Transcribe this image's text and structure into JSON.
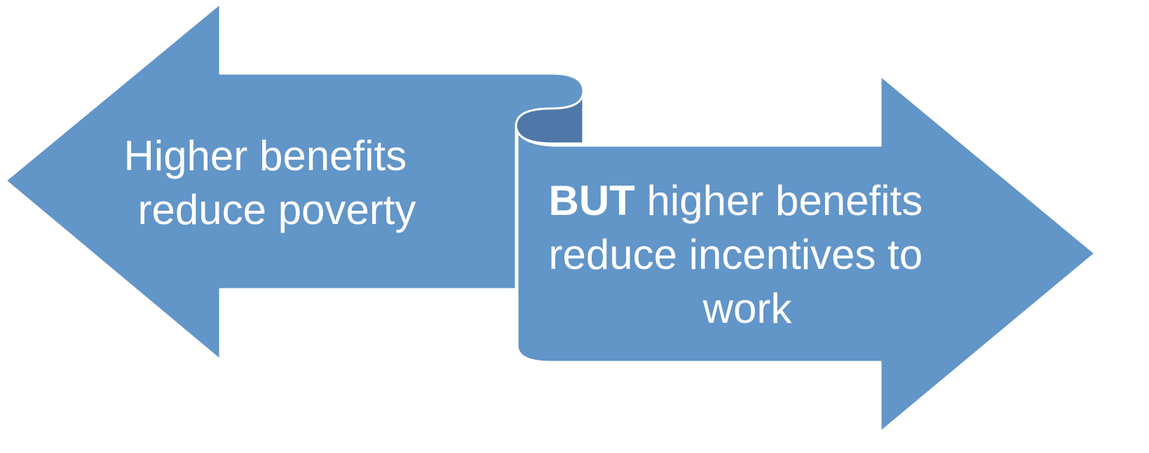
{
  "colors": {
    "arrow_fill": "#6295C8",
    "scroll_curl_fill": "#4F78A8",
    "outline": "#ffffff",
    "text": "#ffffff",
    "background": "#ffffff"
  },
  "left_arrow": {
    "line1": "Higher benefits",
    "line2": "reduce poverty"
  },
  "right_arrow": {
    "line1_bold": "BUT",
    "line1_rest": " higher benefits",
    "line2": "reduce incentives to",
    "line3": "work"
  }
}
